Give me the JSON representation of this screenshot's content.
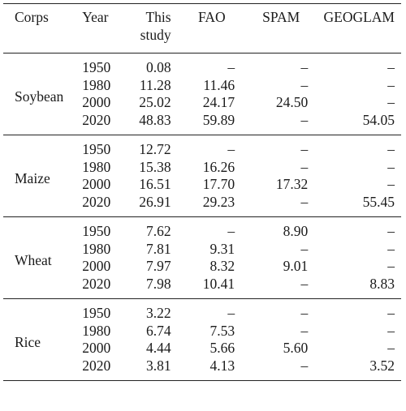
{
  "table": {
    "headers": {
      "crop": "Corps",
      "year": "Year",
      "this_line1": "This",
      "this_line2": "study",
      "fao": "FAO",
      "spam": "SPAM",
      "geoglam": "GEOGLAM"
    },
    "groups": [
      {
        "crop": "Soybean",
        "rows": [
          {
            "year": "1950",
            "this": "0.08",
            "fao": "–",
            "spam": "–",
            "geoglam": "–"
          },
          {
            "year": "1980",
            "this": "11.28",
            "fao": "11.46",
            "spam": "–",
            "geoglam": "–"
          },
          {
            "year": "2000",
            "this": "25.02",
            "fao": "24.17",
            "spam": "24.50",
            "geoglam": "–"
          },
          {
            "year": "2020",
            "this": "48.83",
            "fao": "59.89",
            "spam": "–",
            "geoglam": "54.05"
          }
        ]
      },
      {
        "crop": "Maize",
        "rows": [
          {
            "year": "1950",
            "this": "12.72",
            "fao": "–",
            "spam": "–",
            "geoglam": "–"
          },
          {
            "year": "1980",
            "this": "15.38",
            "fao": "16.26",
            "spam": "–",
            "geoglam": "–"
          },
          {
            "year": "2000",
            "this": "16.51",
            "fao": "17.70",
            "spam": "17.32",
            "geoglam": "–"
          },
          {
            "year": "2020",
            "this": "26.91",
            "fao": "29.23",
            "spam": "–",
            "geoglam": "55.45"
          }
        ]
      },
      {
        "crop": "Wheat",
        "rows": [
          {
            "year": "1950",
            "this": "7.62",
            "fao": "–",
            "spam": "8.90",
            "geoglam": "–"
          },
          {
            "year": "1980",
            "this": "7.81",
            "fao": "9.31",
            "spam": "–",
            "geoglam": "–"
          },
          {
            "year": "2000",
            "this": "7.97",
            "fao": "8.32",
            "spam": "9.01",
            "geoglam": "–"
          },
          {
            "year": "2020",
            "this": "7.98",
            "fao": "10.41",
            "spam": "–",
            "geoglam": "8.83"
          }
        ]
      },
      {
        "crop": "Rice",
        "rows": [
          {
            "year": "1950",
            "this": "3.22",
            "fao": "–",
            "spam": "–",
            "geoglam": "–"
          },
          {
            "year": "1980",
            "this": "6.74",
            "fao": "7.53",
            "spam": "–",
            "geoglam": "–"
          },
          {
            "year": "2000",
            "this": "4.44",
            "fao": "5.66",
            "spam": "5.60",
            "geoglam": "–"
          },
          {
            "year": "2020",
            "this": "3.81",
            "fao": "4.13",
            "spam": "–",
            "geoglam": "3.52"
          }
        ]
      }
    ]
  }
}
